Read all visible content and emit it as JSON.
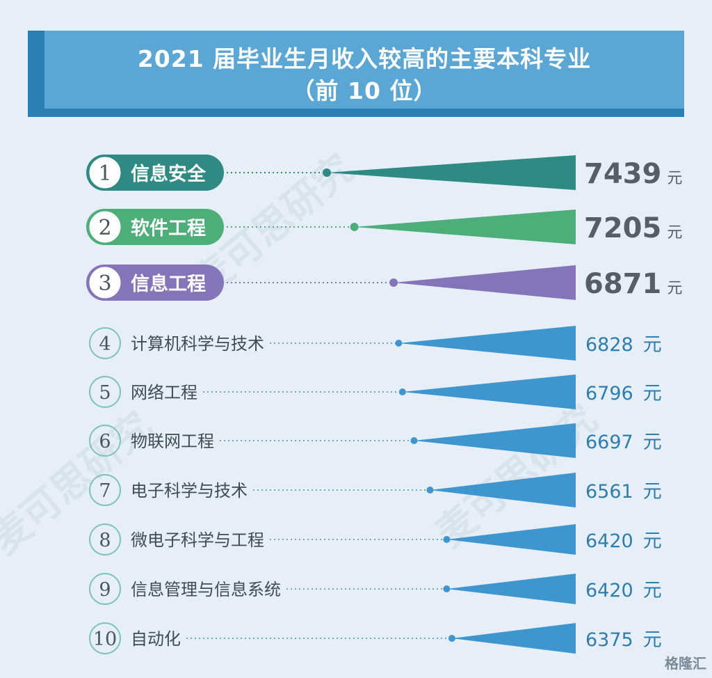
{
  "title": {
    "line1": "2021 届毕业生月收入较高的主要本科专业",
    "line2": "（前 10 位）"
  },
  "watermark": {
    "text": "麦可思研究",
    "logo": "格隆汇"
  },
  "colors": {
    "background": "#e6eff7",
    "title_bg": "#5aa6d5",
    "title_shadow": "#2c7fb4",
    "rank1": "#2e8a82",
    "rank2": "#4dae7a",
    "rank3": "#8674b9",
    "others": "#3f95cd",
    "text_dark": "#3f4b55",
    "value_light": "#2d7db0"
  },
  "chart_data": {
    "type": "bar",
    "title": "2021 届毕业生月收入较高的主要本科专业（前 10 位）",
    "unit": "元",
    "ranks": [
      "1",
      "2",
      "3",
      "4",
      "5",
      "6",
      "7",
      "8",
      "9",
      "10"
    ],
    "categories": [
      "信息安全",
      "软件工程",
      "信息工程",
      "计算机科学与技术",
      "网络工程",
      "物联网工程",
      "电子科学与技术",
      "微电子科学与工程",
      "信息管理与信息系统",
      "自动化"
    ],
    "values": [
      7439,
      7205,
      6871,
      6828,
      6796,
      6697,
      6561,
      6420,
      6420,
      6375
    ],
    "value_labels": [
      "7439",
      "7205",
      "6871",
      "6828",
      "6796",
      "6697",
      "6561",
      "6420",
      "6420",
      "6375"
    ]
  }
}
